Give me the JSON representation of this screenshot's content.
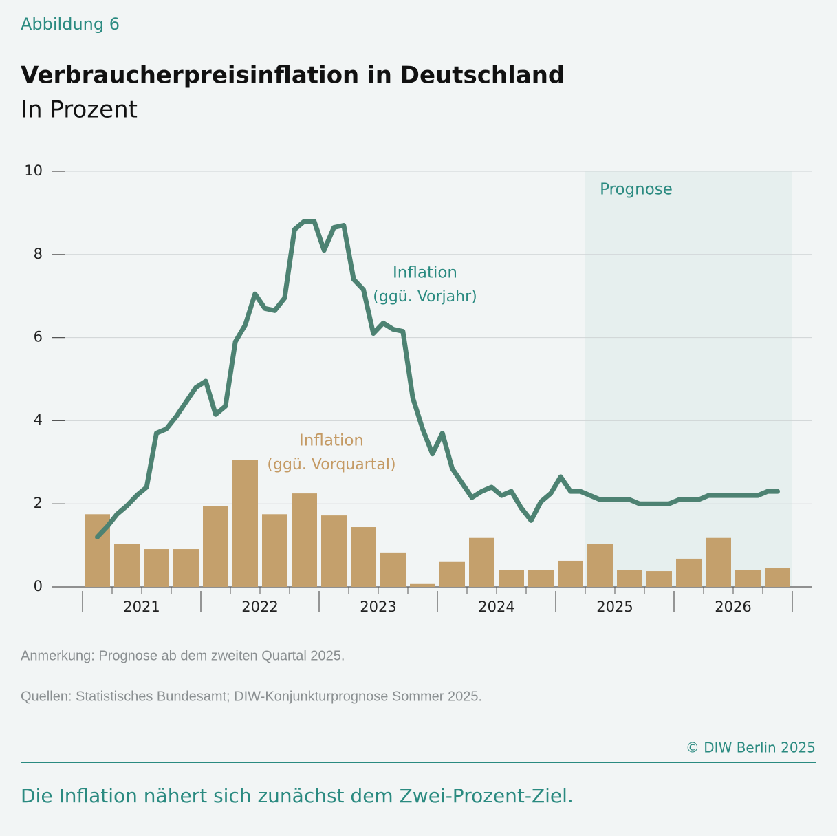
{
  "figure_label": "Abbildung 6",
  "chart_data": {
    "type": "combo",
    "title": "Verbraucherpreisinflation in Deutschland",
    "subtitle": "In Prozent",
    "x_labels": [
      "2021",
      "2022",
      "2023",
      "2024",
      "2025",
      "2026"
    ],
    "ylim": [
      0,
      10
    ],
    "yticks": [
      0,
      2,
      4,
      6,
      8,
      10
    ],
    "grid": true,
    "forecast_label": "Prognose",
    "series": [
      {
        "name": "Inflation",
        "name_note": "(ggü. Vorquartal)",
        "type": "bar",
        "color": "#c4a06c",
        "values": [
          1.75,
          1.04,
          0.91,
          0.91,
          1.94,
          3.06,
          1.75,
          2.25,
          1.72,
          1.44,
          0.83,
          0.07,
          0.6,
          1.18,
          0.41,
          0.41,
          0.63,
          1.04,
          0.41,
          0.38,
          0.68,
          1.18,
          0.41,
          0.46
        ]
      },
      {
        "name": "Inflation",
        "name_note": "(ggü. Vorjahr)",
        "type": "line",
        "color": "#4d8272",
        "values": [
          null,
          1.2,
          1.45,
          1.75,
          1.95,
          2.2,
          2.4,
          3.7,
          3.8,
          4.1,
          4.45,
          4.8,
          4.95,
          4.15,
          4.35,
          5.9,
          6.3,
          7.05,
          6.7,
          6.65,
          6.95,
          8.6,
          8.8,
          8.8,
          8.1,
          8.65,
          8.7,
          7.4,
          7.15,
          6.1,
          6.35,
          6.2,
          6.15,
          4.55,
          3.8,
          3.2,
          3.7,
          2.85,
          2.5,
          2.15,
          2.3,
          2.4,
          2.2,
          2.3,
          1.9,
          1.6,
          2.05,
          2.25,
          2.65,
          2.3,
          2.3,
          2.2,
          2.1,
          2.1,
          2.1,
          2.1,
          2.0,
          2.0,
          2.0,
          2.0,
          2.1,
          2.1,
          2.1,
          2.2,
          2.2,
          2.2,
          2.2,
          2.2,
          2.2,
          2.3,
          2.3,
          null
        ]
      }
    ]
  },
  "notes": [
    "Anmerkung: Prognose ab dem zweiten Quartal 2025.",
    "Quellen: Statistisches Bundesamt; DIW-Konjunkturprognose Sommer 2025."
  ],
  "copyright": "© DIW Berlin 2025",
  "caption": "Die Inflation nähert sich zunächst dem Zwei-Prozent-Ziel."
}
